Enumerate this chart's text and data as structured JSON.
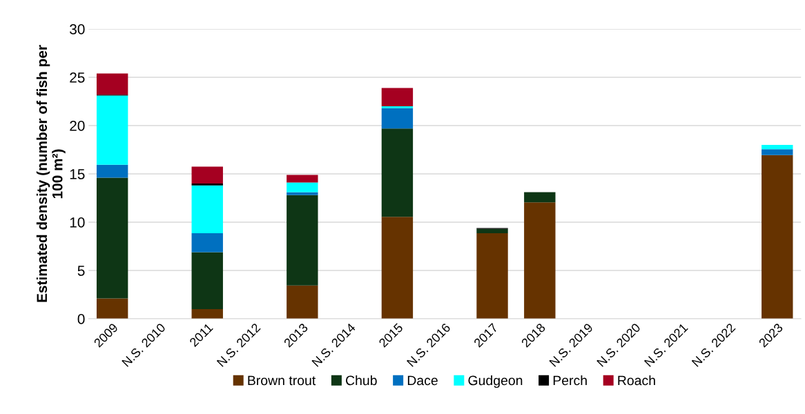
{
  "chart_data": {
    "type": "bar",
    "stacked": true,
    "ylabel": "Estimated density (number of fish per\n100 m²)",
    "categories": [
      "2009",
      "N.S. 2010",
      "2011",
      "N.S. 2012",
      "2013",
      "N.S. 2014",
      "2015",
      "N.S. 2016",
      "2017",
      "2018",
      "N.S. 2019",
      "N.S. 2020",
      "N.S. 2021",
      "N.S. 2022",
      "2023"
    ],
    "series": [
      {
        "name": "Brown trout",
        "color": "#663300",
        "values": [
          2.1,
          null,
          1.0,
          null,
          3.45,
          null,
          10.55,
          null,
          8.85,
          12.05,
          null,
          null,
          null,
          null,
          16.95
        ]
      },
      {
        "name": "Chub",
        "color": "#0e3615",
        "values": [
          12.5,
          null,
          5.9,
          null,
          9.35,
          null,
          9.15,
          null,
          0.45,
          1.05,
          null,
          null,
          null,
          null,
          0
        ]
      },
      {
        "name": "Dace",
        "color": "#0070c0",
        "values": [
          1.35,
          null,
          1.95,
          null,
          0.3,
          null,
          2.1,
          null,
          0,
          0,
          null,
          null,
          null,
          null,
          0.6
        ]
      },
      {
        "name": "Gudgeon",
        "color": "#00ffff",
        "values": [
          7.15,
          null,
          4.95,
          null,
          1.0,
          null,
          0.2,
          null,
          0,
          0,
          null,
          null,
          null,
          null,
          0.45
        ]
      },
      {
        "name": "Perch",
        "color": "#000000",
        "values": [
          0.1,
          null,
          0.2,
          null,
          0,
          null,
          0,
          null,
          0.1,
          0,
          null,
          null,
          null,
          null,
          0
        ]
      },
      {
        "name": "Roach",
        "color": "#a50021",
        "values": [
          2.2,
          null,
          1.75,
          null,
          0.8,
          null,
          1.9,
          null,
          0,
          0,
          null,
          null,
          null,
          null,
          0
        ]
      }
    ],
    "ylim": [
      0,
      30
    ],
    "yticks": [
      0,
      5,
      10,
      15,
      20,
      25,
      30
    ],
    "grid": "y",
    "legend": "bottom"
  }
}
